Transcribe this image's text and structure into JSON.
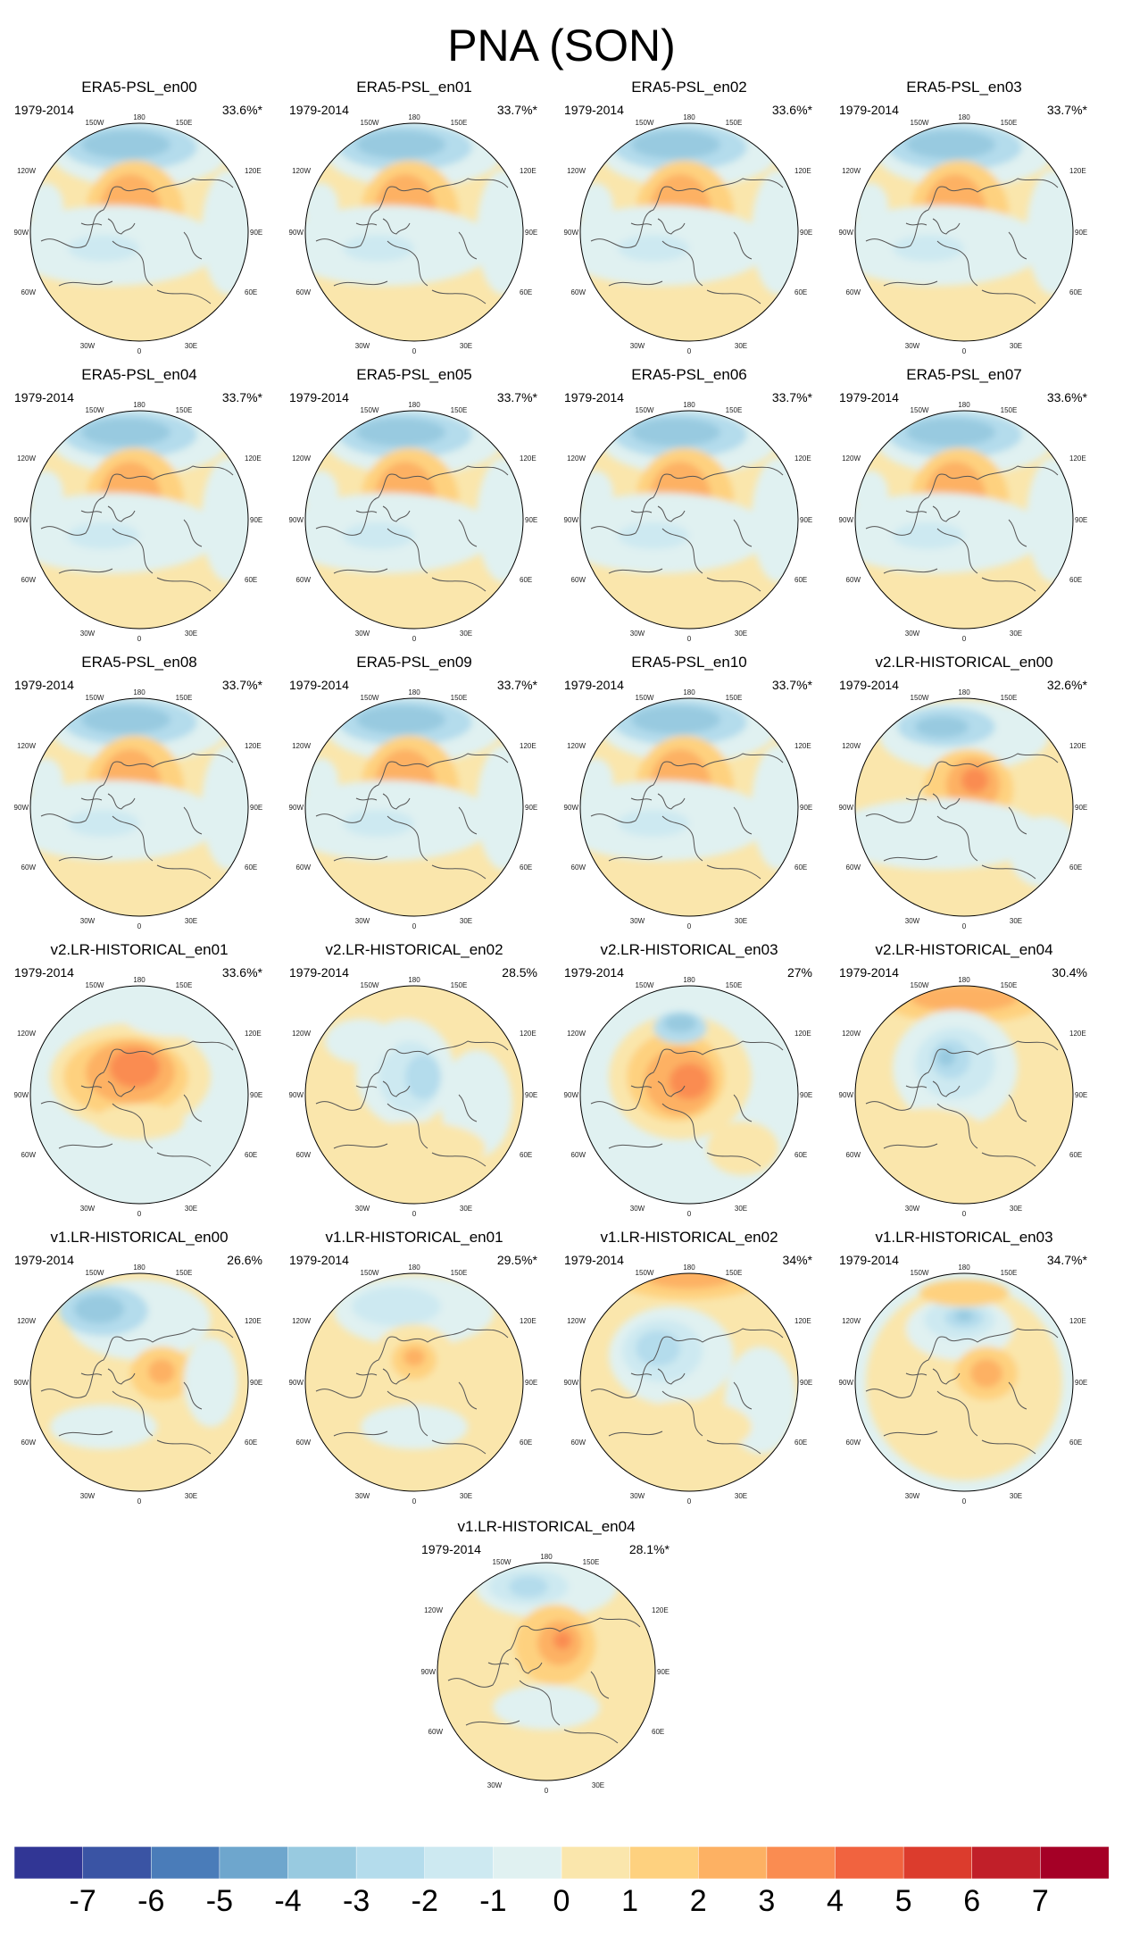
{
  "title": "PNA (SON)",
  "period": "1979-2014",
  "lon_labels": {
    "n": "180",
    "n_l": "150W",
    "n_r": "150E",
    "ul": "120W",
    "ur": "120E",
    "l": "90W",
    "r": "90E",
    "ll": "60W",
    "lr": "60E",
    "bl": "30W",
    "br": "30E",
    "s": "0"
  },
  "panels": [
    {
      "name": "ERA5-PSL_en00",
      "pct": "33.6%*",
      "style": "era5"
    },
    {
      "name": "ERA5-PSL_en01",
      "pct": "33.7%*",
      "style": "era5"
    },
    {
      "name": "ERA5-PSL_en02",
      "pct": "33.6%*",
      "style": "era5"
    },
    {
      "name": "ERA5-PSL_en03",
      "pct": "33.7%*",
      "style": "era5"
    },
    {
      "name": "ERA5-PSL_en04",
      "pct": "33.7%*",
      "style": "era5"
    },
    {
      "name": "ERA5-PSL_en05",
      "pct": "33.7%*",
      "style": "era5"
    },
    {
      "name": "ERA5-PSL_en06",
      "pct": "33.7%*",
      "style": "era5"
    },
    {
      "name": "ERA5-PSL_en07",
      "pct": "33.6%*",
      "style": "era5"
    },
    {
      "name": "ERA5-PSL_en08",
      "pct": "33.7%*",
      "style": "era5"
    },
    {
      "name": "ERA5-PSL_en09",
      "pct": "33.7%*",
      "style": "era5"
    },
    {
      "name": "ERA5-PSL_en10",
      "pct": "33.7%*",
      "style": "era5"
    },
    {
      "name": "v2.LR-HISTORICAL_en00",
      "pct": "32.6%*",
      "style": "v2a"
    },
    {
      "name": "v2.LR-HISTORICAL_en01",
      "pct": "33.6%*",
      "style": "v2b"
    },
    {
      "name": "v2.LR-HISTORICAL_en02",
      "pct": "28.5%",
      "style": "v2c"
    },
    {
      "name": "v2.LR-HISTORICAL_en03",
      "pct": "27%",
      "style": "v2d"
    },
    {
      "name": "v2.LR-HISTORICAL_en04",
      "pct": "30.4%",
      "style": "v2e"
    },
    {
      "name": "v1.LR-HISTORICAL_en00",
      "pct": "26.6%",
      "style": "v1a"
    },
    {
      "name": "v1.LR-HISTORICAL_en01",
      "pct": "29.5%*",
      "style": "v1b"
    },
    {
      "name": "v1.LR-HISTORICAL_en02",
      "pct": "34%*",
      "style": "v1c"
    },
    {
      "name": "v1.LR-HISTORICAL_en03",
      "pct": "34.7%*",
      "style": "v1d"
    },
    {
      "name": "v1.LR-HISTORICAL_en04",
      "pct": "28.1%*",
      "style": "v1e"
    }
  ],
  "colorbar": {
    "colors": [
      "#313695",
      "#3a54a4",
      "#4a7cb9",
      "#6ea6cd",
      "#98cae0",
      "#b4dcec",
      "#cde9f1",
      "#e0f1f1",
      "#fae6ac",
      "#fed17f",
      "#fdb163",
      "#fa8c51",
      "#f1633f",
      "#dc3c2d",
      "#c11f29",
      "#a50026"
    ],
    "tick_labels": [
      "-7",
      "-6",
      "-5",
      "-4",
      "-3",
      "-2",
      "-1",
      "0",
      "1",
      "2",
      "3",
      "4",
      "5",
      "6",
      "7"
    ]
  }
}
